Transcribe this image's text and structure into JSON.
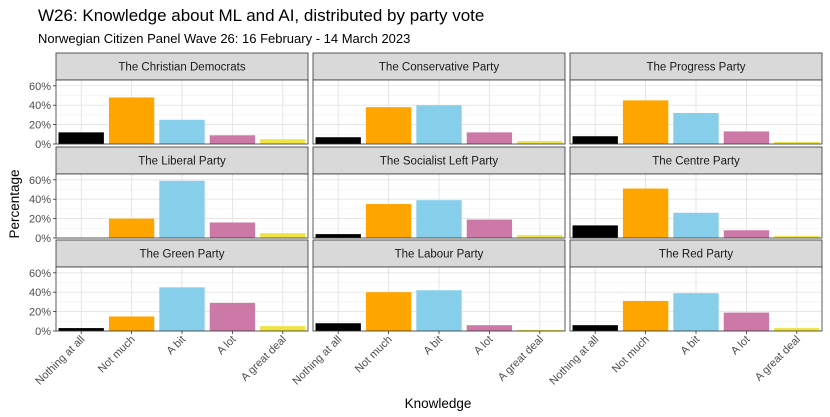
{
  "chart_data": {
    "type": "bar",
    "title": "W26: Knowledge about ML and AI, distributed by party vote",
    "subtitle": "Norwegian Citizen Panel Wave 26: 16 February - 14 March 2023",
    "xlabel": "Knowledge",
    "ylabel": "Percentage",
    "categories": [
      "Nothing at all",
      "Not much",
      "A bit",
      "A lot",
      "A great deal"
    ],
    "colors": [
      "#000000",
      "#FFA500",
      "#87CEEB",
      "#CC79A7",
      "#F0E442"
    ],
    "ylim": [
      0,
      0.66
    ],
    "yticks": [
      0,
      0.2,
      0.4,
      0.6
    ],
    "ytick_labels": [
      "0%",
      "20%",
      "40%",
      "60%"
    ],
    "grid": true,
    "legend": "none",
    "panels": [
      {
        "name": "The Christian Democrats",
        "values": [
          0.12,
          0.48,
          0.25,
          0.09,
          0.05
        ]
      },
      {
        "name": "The Conservative Party",
        "values": [
          0.07,
          0.38,
          0.4,
          0.12,
          0.03
        ]
      },
      {
        "name": "The Progress Party",
        "values": [
          0.08,
          0.45,
          0.32,
          0.13,
          0.02
        ]
      },
      {
        "name": "The Liberal Party",
        "values": [
          0.0,
          0.2,
          0.59,
          0.16,
          0.05
        ]
      },
      {
        "name": "The Socialist Left Party",
        "values": [
          0.04,
          0.35,
          0.39,
          0.19,
          0.03
        ]
      },
      {
        "name": "The Centre Party",
        "values": [
          0.13,
          0.51,
          0.26,
          0.08,
          0.02
        ]
      },
      {
        "name": "The Green Party",
        "values": [
          0.03,
          0.15,
          0.45,
          0.29,
          0.05
        ]
      },
      {
        "name": "The Labour Party",
        "values": [
          0.08,
          0.4,
          0.42,
          0.06,
          0.01
        ]
      },
      {
        "name": "The Red Party",
        "values": [
          0.06,
          0.31,
          0.39,
          0.19,
          0.03
        ]
      }
    ]
  }
}
